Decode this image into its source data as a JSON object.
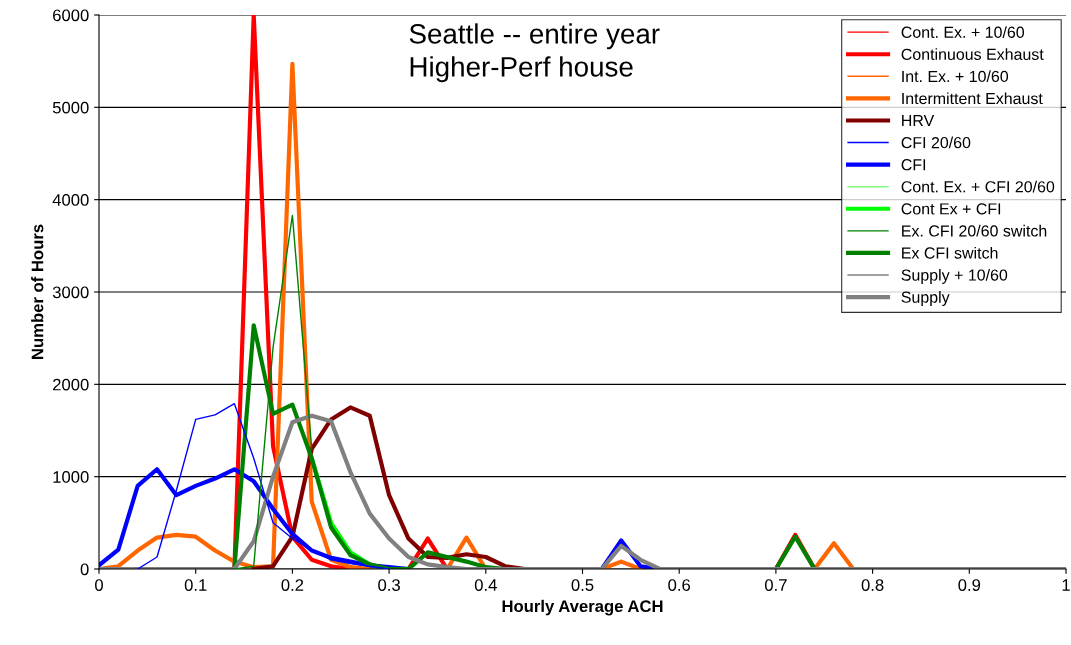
{
  "chart_data": {
    "type": "line",
    "xlabel": "Hourly Average ACH",
    "ylabel": "Number of Hours",
    "annotations": [
      "Seattle -- entire year\nHigher-Perf house"
    ],
    "x": [
      0,
      0.02,
      0.04,
      0.06,
      0.08,
      0.1,
      0.12,
      0.14,
      0.16,
      0.18,
      0.2,
      0.22,
      0.24,
      0.26,
      0.28,
      0.3,
      0.32,
      0.34,
      0.36,
      0.38,
      0.4,
      0.42,
      0.44,
      0.46,
      0.48,
      0.5,
      0.52,
      0.54,
      0.56,
      0.58,
      0.6,
      0.62,
      0.64,
      0.66,
      0.68,
      0.7,
      0.72,
      0.74,
      0.76,
      0.78,
      0.8,
      0.82,
      0.84,
      0.86,
      0.88,
      0.9,
      0.92,
      0.94,
      0.96,
      0.98,
      1
    ],
    "xlim": [
      0,
      1
    ],
    "xticks": [
      0,
      0.1,
      0.2,
      0.3,
      0.4,
      0.5,
      0.6,
      0.7,
      0.8,
      0.9,
      1
    ],
    "ylim": [
      0,
      6000
    ],
    "yticks": [
      0,
      1000,
      2000,
      3000,
      4000,
      5000,
      6000
    ],
    "grid": "y",
    "legend": "top right",
    "marker": "none",
    "line_style": "solid",
    "series": [
      {
        "name": "Cont. Ex. + 10/60",
        "color": "#ff0000",
        "values": [
          null,
          null,
          null,
          null,
          null,
          null,
          null,
          null,
          null,
          null,
          null,
          null,
          null,
          null,
          null,
          null,
          null,
          null,
          null,
          null,
          null,
          null,
          null,
          null,
          null,
          null,
          null,
          null,
          null,
          null,
          null,
          null,
          null,
          null,
          null,
          null,
          null,
          null,
          null,
          null,
          null,
          null,
          null,
          null,
          null,
          null,
          null,
          null,
          null,
          null,
          null
        ]
      },
      {
        "name": "Continuous Exhaust",
        "color": "#ff0000",
        "values": [
          null,
          null,
          null,
          null,
          null,
          null,
          null,
          0,
          6000,
          1330,
          350,
          100,
          30,
          0,
          null,
          null,
          0,
          330,
          0,
          null,
          null,
          null,
          null,
          null,
          null,
          null,
          null,
          null,
          null,
          null,
          null,
          null,
          null,
          null,
          null,
          0,
          370,
          0,
          null,
          null,
          null,
          null,
          null,
          null,
          null,
          null,
          null,
          null,
          null,
          null,
          null
        ]
      },
      {
        "name": "Int. Ex. + 10/60",
        "color": "#ff6600",
        "values": [
          null,
          null,
          null,
          null,
          null,
          null,
          null,
          null,
          null,
          null,
          null,
          null,
          null,
          null,
          null,
          null,
          null,
          null,
          null,
          null,
          null,
          null,
          null,
          null,
          null,
          null,
          null,
          null,
          null,
          null,
          null,
          null,
          null,
          null,
          null,
          null,
          null,
          null,
          null,
          null,
          null,
          null,
          null,
          null,
          null,
          null,
          null,
          null,
          null,
          null,
          null
        ]
      },
      {
        "name": "Intermittent Exhaust",
        "color": "#ff6600",
        "values": [
          0,
          30,
          200,
          340,
          370,
          350,
          200,
          80,
          20,
          30,
          5470,
          730,
          100,
          20,
          0,
          null,
          null,
          null,
          0,
          340,
          0,
          null,
          null,
          null,
          null,
          null,
          0,
          80,
          0,
          null,
          null,
          null,
          null,
          null,
          null,
          null,
          null,
          0,
          280,
          0,
          null,
          null,
          null,
          null,
          null,
          null,
          null,
          null,
          null,
          null,
          null
        ]
      },
      {
        "name": "HRV",
        "color": "#800000",
        "values": [
          null,
          null,
          null,
          null,
          null,
          null,
          null,
          null,
          0,
          30,
          350,
          1300,
          1620,
          1750,
          1660,
          800,
          330,
          130,
          120,
          160,
          130,
          30,
          0,
          null,
          null,
          null,
          null,
          null,
          null,
          null,
          null,
          null,
          null,
          null,
          null,
          null,
          null,
          null,
          null,
          null,
          null,
          null,
          null,
          null,
          null,
          null,
          null,
          null,
          null,
          null,
          null
        ]
      },
      {
        "name": "CFI 20/60",
        "color": "#0000ff",
        "values": [
          null,
          null,
          0,
          130,
          850,
          1620,
          1670,
          1790,
          1200,
          500,
          330,
          200,
          100,
          60,
          30,
          0,
          null,
          null,
          null,
          null,
          null,
          null,
          null,
          null,
          null,
          null,
          null,
          null,
          null,
          null,
          null,
          null,
          null,
          null,
          null,
          null,
          null,
          null,
          null,
          null,
          null,
          null,
          null,
          null,
          null,
          null,
          null,
          null,
          null,
          null,
          null
        ]
      },
      {
        "name": "CFI",
        "color": "#0000ff",
        "values": [
          40,
          210,
          900,
          1080,
          800,
          900,
          980,
          1080,
          950,
          650,
          380,
          200,
          120,
          80,
          40,
          20,
          0,
          null,
          null,
          null,
          null,
          null,
          null,
          null,
          null,
          null,
          0,
          310,
          30,
          0,
          null,
          null,
          null,
          null,
          null,
          null,
          null,
          null,
          null,
          null,
          null,
          null,
          null,
          null,
          null,
          null,
          null,
          null,
          null,
          null,
          null
        ]
      },
      {
        "name": "Cont. Ex. + CFI 20/60",
        "color": "#80ff80",
        "values": [
          null,
          null,
          null,
          null,
          null,
          null,
          null,
          null,
          null,
          null,
          null,
          null,
          null,
          null,
          null,
          null,
          null,
          null,
          null,
          null,
          null,
          null,
          null,
          null,
          null,
          null,
          null,
          null,
          null,
          null,
          null,
          null,
          null,
          null,
          null,
          null,
          null,
          null,
          null,
          null,
          null,
          null,
          null,
          null,
          null,
          null,
          null,
          null,
          null,
          null,
          null
        ]
      },
      {
        "name": "Cont Ex + CFI",
        "color": "#00ff00",
        "values": [
          null,
          null,
          null,
          null,
          null,
          null,
          null,
          null,
          null,
          null,
          null,
          1200,
          500,
          180,
          50,
          null,
          null,
          null,
          null,
          null,
          null,
          null,
          null,
          null,
          null,
          null,
          null,
          null,
          null,
          null,
          null,
          null,
          null,
          null,
          null,
          null,
          null,
          null,
          null,
          null,
          null,
          null,
          null,
          null,
          null,
          null,
          null,
          null,
          null,
          null,
          null
        ]
      },
      {
        "name": "Ex. CFI 20/60 switch",
        "color": "#008000",
        "values": [
          null,
          null,
          null,
          null,
          null,
          null,
          null,
          0,
          30,
          2400,
          3830,
          1300,
          null,
          null,
          null,
          null,
          null,
          null,
          null,
          null,
          null,
          null,
          null,
          null,
          null,
          null,
          null,
          null,
          null,
          null,
          null,
          null,
          null,
          null,
          null,
          null,
          null,
          null,
          null,
          null,
          null,
          null,
          null,
          null,
          null,
          null,
          null,
          null,
          null,
          null,
          null
        ]
      },
      {
        "name": "Ex CFI switch",
        "color": "#008000",
        "values": [
          null,
          null,
          null,
          null,
          null,
          null,
          null,
          0,
          2640,
          1680,
          1780,
          1200,
          450,
          150,
          50,
          0,
          0,
          180,
          130,
          80,
          20,
          0,
          null,
          null,
          null,
          null,
          null,
          null,
          null,
          null,
          null,
          null,
          null,
          null,
          null,
          0,
          350,
          0,
          null,
          null,
          null,
          null,
          null,
          null,
          null,
          null,
          null,
          null,
          null,
          null,
          null
        ]
      },
      {
        "name": "Supply + 10/60",
        "color": "#808080",
        "values": [
          null,
          null,
          null,
          null,
          null,
          null,
          null,
          null,
          null,
          null,
          null,
          null,
          null,
          null,
          null,
          null,
          null,
          null,
          null,
          null,
          null,
          null,
          null,
          null,
          null,
          null,
          null,
          null,
          null,
          null,
          null,
          null,
          null,
          null,
          null,
          null,
          null,
          null,
          null,
          null,
          null,
          null,
          null,
          null,
          null,
          null,
          null,
          null,
          null,
          null,
          null
        ]
      },
      {
        "name": "Supply",
        "color": "#808080",
        "values": [
          0,
          0,
          0,
          0,
          0,
          0,
          0,
          0,
          300,
          1000,
          1590,
          1660,
          1600,
          1050,
          600,
          330,
          130,
          50,
          20,
          0,
          0,
          0,
          0,
          0,
          0,
          0,
          0,
          250,
          100,
          0,
          0,
          0,
          0,
          0,
          0,
          0,
          0,
          0,
          0,
          0,
          0,
          0,
          0,
          0,
          0,
          0,
          0,
          0,
          0,
          0,
          0
        ]
      }
    ]
  }
}
